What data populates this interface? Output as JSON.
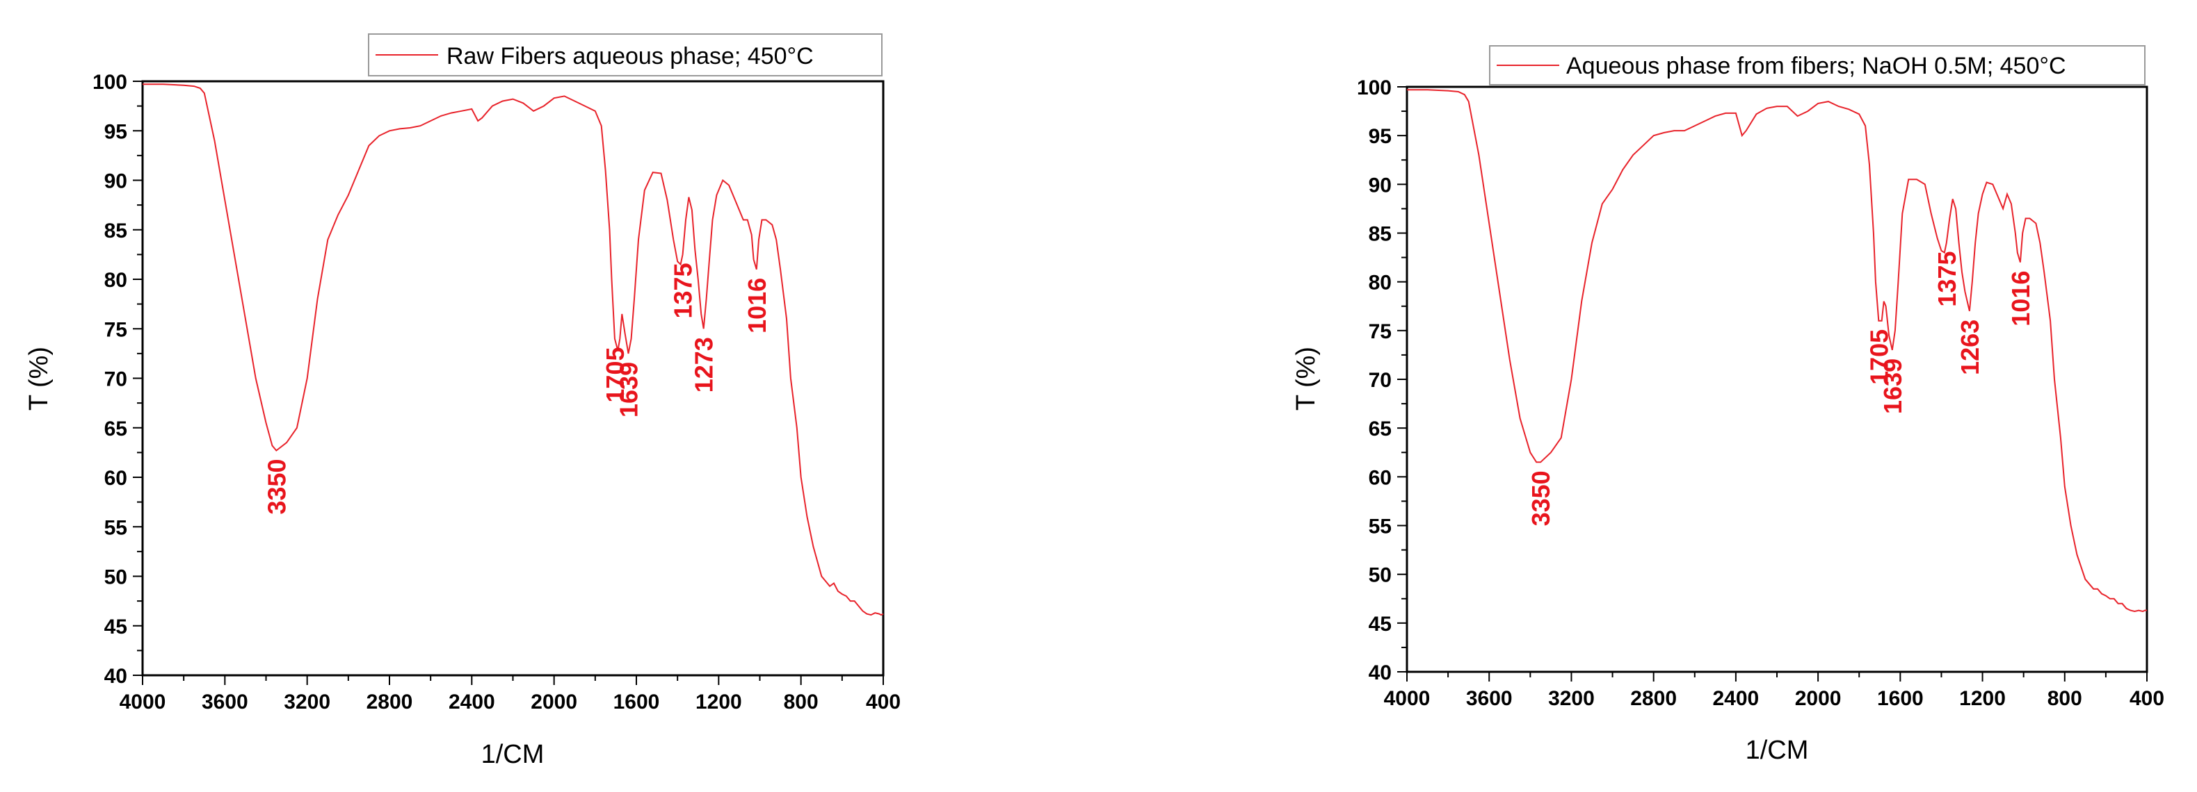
{
  "colors": {
    "series": "#e8222a",
    "peak_label": "#e8141c",
    "axis": "#000000"
  },
  "chart_data": [
    {
      "type": "line",
      "title": "",
      "xlabel": "1/CM",
      "ylabel": "T (%)",
      "xlim": [
        4000,
        400
      ],
      "ylim": [
        40,
        100
      ],
      "x_ticks": [
        4000,
        3600,
        3200,
        2800,
        2400,
        2000,
        1600,
        1200,
        800,
        400
      ],
      "y_ticks": [
        40,
        45,
        50,
        55,
        60,
        65,
        70,
        75,
        80,
        85,
        90,
        95,
        100
      ],
      "legend": "top-right",
      "grid": false,
      "series": [
        {
          "name": "Raw Fibers aqueous phase; 450°C",
          "x": [
            4000,
            3900,
            3800,
            3750,
            3720,
            3700,
            3650,
            3600,
            3550,
            3500,
            3450,
            3400,
            3370,
            3350,
            3300,
            3250,
            3200,
            3150,
            3100,
            3050,
            3000,
            2950,
            2900,
            2850,
            2800,
            2750,
            2700,
            2650,
            2600,
            2550,
            2500,
            2450,
            2400,
            2370,
            2350,
            2300,
            2250,
            2200,
            2150,
            2100,
            2050,
            2000,
            1950,
            1900,
            1850,
            1800,
            1770,
            1750,
            1730,
            1720,
            1705,
            1690,
            1680,
            1670,
            1655,
            1639,
            1625,
            1610,
            1590,
            1560,
            1520,
            1480,
            1450,
            1420,
            1400,
            1385,
            1375,
            1360,
            1345,
            1330,
            1315,
            1300,
            1285,
            1273,
            1260,
            1245,
            1230,
            1210,
            1180,
            1150,
            1120,
            1100,
            1080,
            1060,
            1040,
            1030,
            1016,
            1005,
            990,
            970,
            940,
            920,
            900,
            870,
            850,
            820,
            800,
            770,
            740,
            700,
            680,
            660,
            640,
            620,
            600,
            580,
            560,
            540,
            520,
            500,
            480,
            460,
            440,
            420,
            410,
            400
          ],
          "y": [
            99.7,
            99.7,
            99.6,
            99.5,
            99.3,
            98.8,
            94,
            88,
            82,
            76,
            70,
            65.5,
            63.2,
            62.7,
            63.5,
            65,
            70,
            78,
            84,
            86.5,
            88.5,
            91,
            93.5,
            94.5,
            95,
            95.2,
            95.3,
            95.5,
            96,
            96.5,
            96.8,
            97,
            97.2,
            96,
            96.3,
            97.5,
            98,
            98.2,
            97.8,
            97,
            97.5,
            98.3,
            98.5,
            98,
            97.5,
            97,
            95.5,
            91,
            85,
            80,
            74,
            72.8,
            74,
            76.5,
            74.5,
            72.5,
            74,
            78,
            84,
            89,
            90.8,
            90.7,
            88,
            84,
            81.8,
            81.5,
            82.5,
            86,
            88.3,
            87,
            83,
            80,
            76.5,
            75,
            78,
            82,
            86,
            88.5,
            90,
            89.5,
            88,
            87,
            86,
            86,
            84.5,
            82,
            81,
            84,
            86,
            86,
            85.5,
            84,
            81,
            76,
            70,
            65,
            60,
            56,
            53,
            50,
            49.5,
            49,
            49.3,
            48.5,
            48.2,
            48,
            47.5,
            47.5,
            47,
            46.5,
            46.2,
            46.1,
            46.3,
            46.2,
            46.1,
            46.2
          ],
          "peaks": [
            {
              "label": "3350",
              "x": 3350
            },
            {
              "label": "1705",
              "x": 1705
            },
            {
              "label": "1639",
              "x": 1639
            },
            {
              "label": "1375",
              "x": 1375
            },
            {
              "label": "1273",
              "x": 1273
            },
            {
              "label": "1016",
              "x": 1016
            }
          ]
        }
      ]
    },
    {
      "type": "line",
      "title": "",
      "xlabel": "1/CM",
      "ylabel": "T (%)",
      "xlim": [
        4000,
        400
      ],
      "ylim": [
        40,
        100
      ],
      "x_ticks": [
        4000,
        3600,
        3200,
        2800,
        2400,
        2000,
        1600,
        1200,
        800,
        400
      ],
      "y_ticks": [
        40,
        45,
        50,
        55,
        60,
        65,
        70,
        75,
        80,
        85,
        90,
        95,
        100
      ],
      "legend": "top-right",
      "grid": false,
      "series": [
        {
          "name": "Aqueous phase from fibers; NaOH 0.5M; 450°C",
          "x": [
            4000,
            3900,
            3800,
            3750,
            3720,
            3700,
            3650,
            3600,
            3550,
            3500,
            3450,
            3400,
            3370,
            3350,
            3300,
            3250,
            3200,
            3150,
            3100,
            3050,
            3000,
            2950,
            2900,
            2850,
            2800,
            2750,
            2700,
            2650,
            2600,
            2550,
            2500,
            2450,
            2400,
            2370,
            2350,
            2300,
            2250,
            2200,
            2150,
            2100,
            2050,
            2000,
            1950,
            1900,
            1850,
            1800,
            1770,
            1750,
            1730,
            1720,
            1705,
            1690,
            1680,
            1670,
            1655,
            1639,
            1625,
            1610,
            1590,
            1560,
            1520,
            1480,
            1450,
            1420,
            1400,
            1385,
            1375,
            1360,
            1345,
            1330,
            1315,
            1300,
            1285,
            1263,
            1250,
            1235,
            1220,
            1200,
            1180,
            1150,
            1120,
            1100,
            1080,
            1060,
            1040,
            1030,
            1016,
            1005,
            990,
            970,
            940,
            920,
            900,
            870,
            850,
            820,
            800,
            770,
            740,
            700,
            680,
            660,
            640,
            620,
            600,
            580,
            560,
            540,
            520,
            500,
            480,
            460,
            440,
            420,
            410,
            400
          ],
          "y": [
            99.7,
            99.7,
            99.6,
            99.5,
            99.2,
            98.5,
            93,
            86,
            79,
            72,
            66,
            62.5,
            61.5,
            61.5,
            62.5,
            64,
            70,
            78,
            84,
            88,
            89.5,
            91.5,
            93,
            94,
            95,
            95.3,
            95.5,
            95.5,
            96,
            96.5,
            97,
            97.3,
            97.3,
            95,
            95.5,
            97.2,
            97.8,
            98,
            98,
            97,
            97.5,
            98.3,
            98.5,
            98,
            97.7,
            97.2,
            96,
            92,
            85,
            80,
            76,
            76,
            78,
            77.5,
            74.5,
            73,
            75,
            80,
            87,
            90.5,
            90.5,
            90,
            87,
            84.5,
            83.2,
            83,
            84,
            86.5,
            88.5,
            87.5,
            84,
            81,
            79,
            77,
            80,
            84,
            87,
            89,
            90.2,
            90,
            88.5,
            87.5,
            89,
            88,
            85,
            83,
            82,
            85,
            86.5,
            86.5,
            86,
            84,
            81,
            76,
            70,
            64,
            59,
            55,
            52,
            49.5,
            49,
            48.5,
            48.5,
            48,
            47.8,
            47.5,
            47.5,
            47,
            47,
            46.5,
            46.3,
            46.2,
            46.3,
            46.2,
            46.3,
            46.3
          ],
          "peaks": [
            {
              "label": "3350",
              "x": 3350
            },
            {
              "label": "1705",
              "x": 1705
            },
            {
              "label": "1639",
              "x": 1639
            },
            {
              "label": "1375",
              "x": 1375
            },
            {
              "label": "1263",
              "x": 1263
            },
            {
              "label": "1016",
              "x": 1016
            }
          ]
        }
      ]
    }
  ]
}
